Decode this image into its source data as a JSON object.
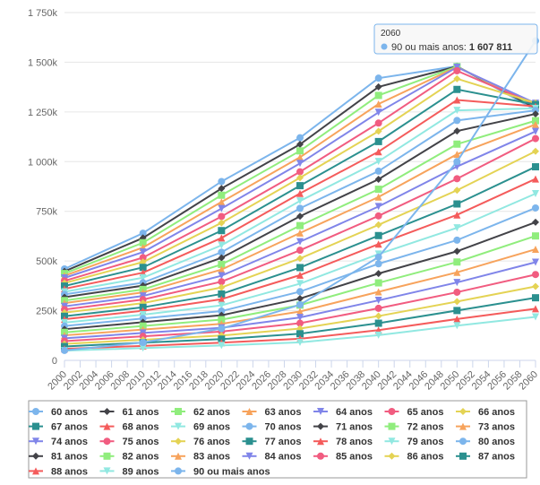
{
  "chart_data": {
    "type": "line",
    "grid": true,
    "x": [
      2000,
      2010,
      2020,
      2030,
      2040,
      2050,
      2060
    ],
    "xlim": [
      2000,
      2060
    ],
    "xticks": [
      2000,
      2002,
      2004,
      2006,
      2008,
      2010,
      2012,
      2014,
      2016,
      2018,
      2020,
      2022,
      2024,
      2026,
      2028,
      2030,
      2032,
      2034,
      2036,
      2038,
      2040,
      2042,
      2044,
      2046,
      2048,
      2050,
      2052,
      2054,
      2056,
      2058,
      2060
    ],
    "ylim": [
      0,
      1750000
    ],
    "yticks": [
      0,
      {
        "value": 250000,
        "label": "250k"
      },
      {
        "value": 500000,
        "label": "500k"
      },
      {
        "value": 750000,
        "label": "750k"
      },
      {
        "value": 1000000,
        "label": "1 000k"
      },
      {
        "value": 1250000,
        "label": "1 250k"
      },
      {
        "value": 1500000,
        "label": "1 500k"
      },
      {
        "value": 1750000,
        "label": "1 750k"
      }
    ],
    "series": [
      {
        "name": "60 anos",
        "color": "#7cb5ec",
        "marker": "circle",
        "values": [
          460000,
          640000,
          900000,
          1120000,
          1420000,
          1480000,
          1260000
        ]
      },
      {
        "name": "61 anos",
        "color": "#434348",
        "marker": "diamond",
        "values": [
          448000,
          616000,
          865000,
          1087000,
          1376000,
          1479000,
          1269000
        ]
      },
      {
        "name": "62 anos",
        "color": "#90ed7d",
        "marker": "square",
        "values": [
          437000,
          592000,
          831000,
          1054000,
          1333000,
          1478000,
          1278000
        ]
      },
      {
        "name": "63 anos",
        "color": "#f7a35c",
        "marker": "triangle",
        "values": [
          426000,
          568000,
          797000,
          1022000,
          1290000,
          1476000,
          1286000
        ]
      },
      {
        "name": "64 anos",
        "color": "#8085e9",
        "marker": "triangle-down",
        "values": [
          415000,
          545000,
          764000,
          991000,
          1248000,
          1475000,
          1294000
        ]
      },
      {
        "name": "65 anos",
        "color": "#f15c80",
        "marker": "circle",
        "values": [
          400000,
          517000,
          724000,
          949000,
          1194000,
          1457000,
          1288000
        ]
      },
      {
        "name": "66 anos",
        "color": "#e4d354",
        "marker": "diamond",
        "values": [
          389000,
          495000,
          692000,
          919000,
          1153000,
          1417000,
          1295000
        ]
      },
      {
        "name": "67 anos",
        "color": "#2b908f",
        "marker": "square",
        "values": [
          374000,
          468000,
          653000,
          879000,
          1101000,
          1363000,
          1287000
        ]
      },
      {
        "name": "68 anos",
        "color": "#f45b5b",
        "marker": "triangle",
        "values": [
          360000,
          441000,
          616000,
          840000,
          1050000,
          1310000,
          1278000
        ]
      },
      {
        "name": "69 anos",
        "color": "#91e8e1",
        "marker": "triangle-down",
        "values": [
          345000,
          416000,
          579000,
          802000,
          1001000,
          1258000,
          1268000
        ]
      },
      {
        "name": "70 anos",
        "color": "#7cb5ec",
        "marker": "circle",
        "values": [
          332000,
          391000,
          544000,
          765000,
          952000,
          1207000,
          1258000
        ]
      },
      {
        "name": "71 anos",
        "color": "#434348",
        "marker": "diamond",
        "values": [
          318000,
          376000,
          516000,
          725000,
          911000,
          1154000,
          1240000
        ]
      },
      {
        "name": "72 anos",
        "color": "#90ed7d",
        "marker": "square",
        "values": [
          301000,
          357000,
          483000,
          678000,
          861000,
          1088000,
          1206000
        ]
      },
      {
        "name": "73 anos",
        "color": "#f7a35c",
        "marker": "triangle",
        "values": [
          288000,
          342000,
          457000,
          641000,
          822000,
          1037000,
          1187000
        ]
      },
      {
        "name": "74 anos",
        "color": "#8085e9",
        "marker": "triangle-down",
        "values": [
          272000,
          324000,
          426000,
          597000,
          774000,
          975000,
          1152000
        ]
      },
      {
        "name": "75 anos",
        "color": "#f15c80",
        "marker": "circle",
        "values": [
          256000,
          306000,
          396000,
          554000,
          727000,
          914000,
          1116000
        ]
      },
      {
        "name": "76 anos",
        "color": "#e4d354",
        "marker": "diamond",
        "values": [
          240000,
          288000,
          367000,
          513000,
          682000,
          856000,
          1052000
        ]
      },
      {
        "name": "77 anos",
        "color": "#2b908f",
        "marker": "square",
        "values": [
          222000,
          267000,
          334000,
          467000,
          628000,
          787000,
          974000
        ]
      },
      {
        "name": "78 anos",
        "color": "#f45b5b",
        "marker": "triangle",
        "values": [
          207000,
          250000,
          308000,
          429000,
          585000,
          732000,
          913000
        ]
      },
      {
        "name": "79 anos",
        "color": "#91e8e1",
        "marker": "triangle-down",
        "values": [
          190000,
          230000,
          277000,
          386000,
          535000,
          667000,
          839000
        ]
      },
      {
        "name": "80 anos",
        "color": "#7cb5ec",
        "marker": "circle",
        "values": [
          173000,
          211000,
          248000,
          346000,
          486000,
          605000,
          767000
        ]
      },
      {
        "name": "81 anos",
        "color": "#434348",
        "marker": "diamond",
        "values": [
          157000,
          192000,
          227000,
          311000,
          437000,
          549000,
          695000
        ]
      },
      {
        "name": "82 anos",
        "color": "#90ed7d",
        "marker": "square",
        "values": [
          141000,
          173000,
          205000,
          278000,
          390000,
          495000,
          626000
        ]
      },
      {
        "name": "83 anos",
        "color": "#f7a35c",
        "marker": "triangle",
        "values": [
          126000,
          155000,
          184000,
          246000,
          345000,
          443000,
          559000
        ]
      },
      {
        "name": "84 anos",
        "color": "#8085e9",
        "marker": "triangle-down",
        "values": [
          111000,
          138000,
          164000,
          216000,
          302000,
          392000,
          494000
        ]
      },
      {
        "name": "85 anos",
        "color": "#f15c80",
        "marker": "circle",
        "values": [
          97000,
          121000,
          145000,
          187000,
          262000,
          343000,
          432000
        ]
      },
      {
        "name": "86 anos",
        "color": "#e4d354",
        "marker": "diamond",
        "values": [
          83000,
          104000,
          125000,
          160000,
          223000,
          296000,
          372000
        ]
      },
      {
        "name": "87 anos",
        "color": "#2b908f",
        "marker": "square",
        "values": [
          70000,
          89000,
          107000,
          134000,
          187000,
          251000,
          315000
        ]
      },
      {
        "name": "88 anos",
        "color": "#f45b5b",
        "marker": "triangle",
        "values": [
          58000,
          73000,
          89000,
          109000,
          152000,
          208000,
          260000
        ]
      },
      {
        "name": "89 anos",
        "color": "#91e8e1",
        "marker": "triangle-down",
        "values": [
          49000,
          62000,
          75000,
          91000,
          127000,
          175000,
          219000
        ]
      },
      {
        "name": "90 ou mais anos",
        "color": "#7cb5ec",
        "marker": "circle",
        "values": [
          50000,
          90000,
          160000,
          280000,
          520000,
          1000000,
          1607811
        ],
        "value_labels": [
          null,
          null,
          null,
          null,
          null,
          null,
          "1 607 811"
        ]
      }
    ]
  }
}
